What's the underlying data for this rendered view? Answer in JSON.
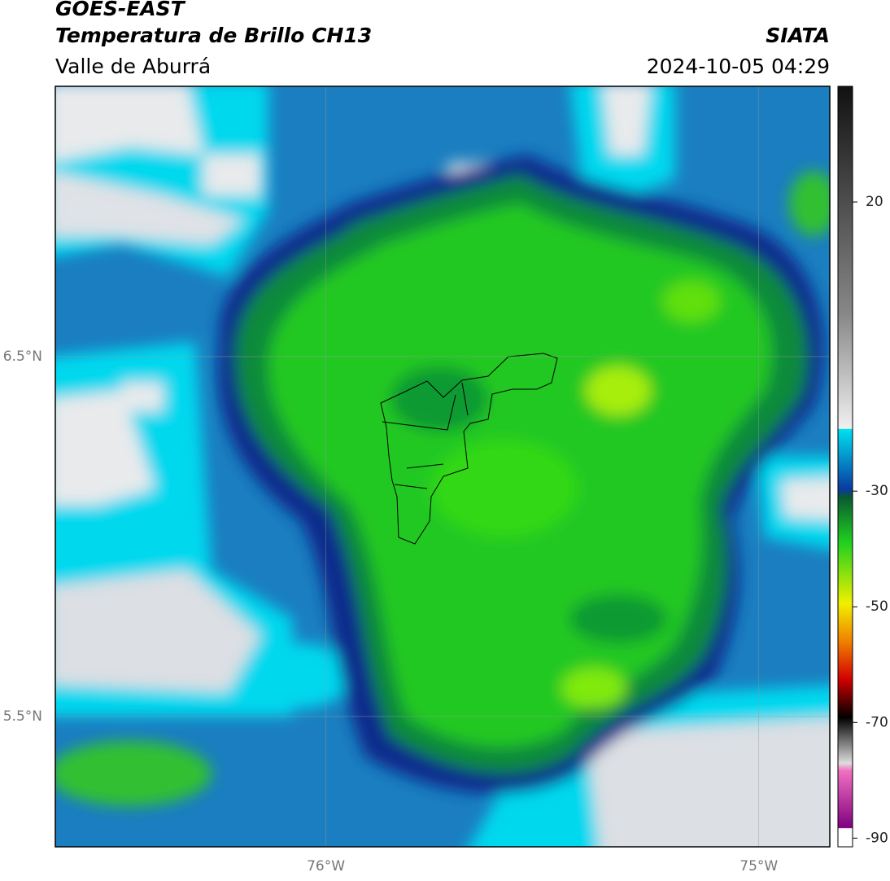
{
  "header": {
    "title": "GOES-EAST",
    "subtitle": "Temperatura de Brillo CH13",
    "source": "SIATA",
    "region": "Valle de Aburrá",
    "datetime": "2024-10-05 04:29"
  },
  "map": {
    "xlim": [
      -76.625,
      -74.836
    ],
    "ylim": [
      5.138,
      7.251
    ],
    "xticks": [
      {
        "value": -76,
        "label": "76°W"
      },
      {
        "value": -75,
        "label": "75°W"
      }
    ],
    "yticks": [
      {
        "value": 6.5,
        "label": "6.5°N"
      },
      {
        "value": 5.5,
        "label": "5.5°N"
      }
    ],
    "grid": true
  },
  "colorbar": {
    "clim": [
      -91.5,
      40
    ],
    "ticks": [
      20,
      -30,
      -50,
      -70,
      -90
    ]
  }
}
